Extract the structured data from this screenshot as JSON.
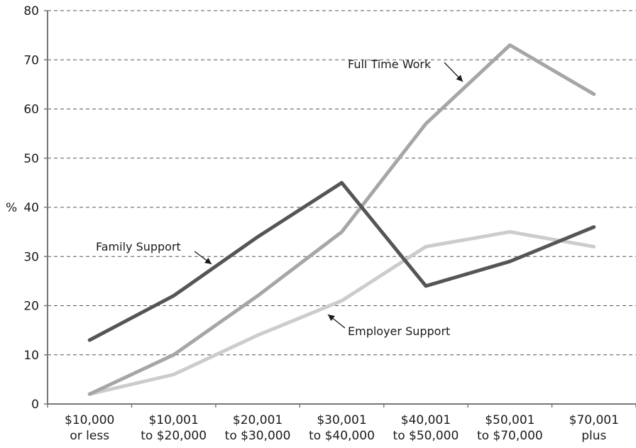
{
  "chart_data": {
    "type": "line",
    "title": "",
    "xlabel": "",
    "ylabel": "%",
    "ylim": [
      0,
      80
    ],
    "yticks": [
      0,
      10,
      20,
      30,
      40,
      50,
      60,
      70,
      80
    ],
    "grid": true,
    "categories": [
      [
        "$10,000",
        "or less"
      ],
      [
        "$10,001",
        "to $20,000"
      ],
      [
        "$20,001",
        "to $30,000"
      ],
      [
        "$30,001",
        "to $40,000"
      ],
      [
        "$40,001",
        "to $50,000"
      ],
      [
        "$50,001",
        "to $70,000"
      ],
      [
        "$70,001",
        "plus"
      ]
    ],
    "series": [
      {
        "name": "Family Support",
        "color": "#555555",
        "values": [
          13,
          22,
          34,
          45,
          24,
          29,
          36
        ]
      },
      {
        "name": "Full Time Work",
        "color": "#a6a6a6",
        "values": [
          2,
          10,
          22,
          35,
          57,
          73,
          63
        ]
      },
      {
        "name": "Employer Support",
        "color": "#cccccc",
        "values": [
          2,
          6,
          14,
          21,
          32,
          35,
          32
        ]
      }
    ],
    "annotations": [
      {
        "series": "Full Time Work",
        "text": "Full Time Work",
        "arrow_direction": "down-right"
      },
      {
        "series": "Family Support",
        "text": "Family Support",
        "arrow_direction": "down-right"
      },
      {
        "series": "Employer Support",
        "text": "Employer Support",
        "arrow_direction": "up-left"
      }
    ]
  }
}
